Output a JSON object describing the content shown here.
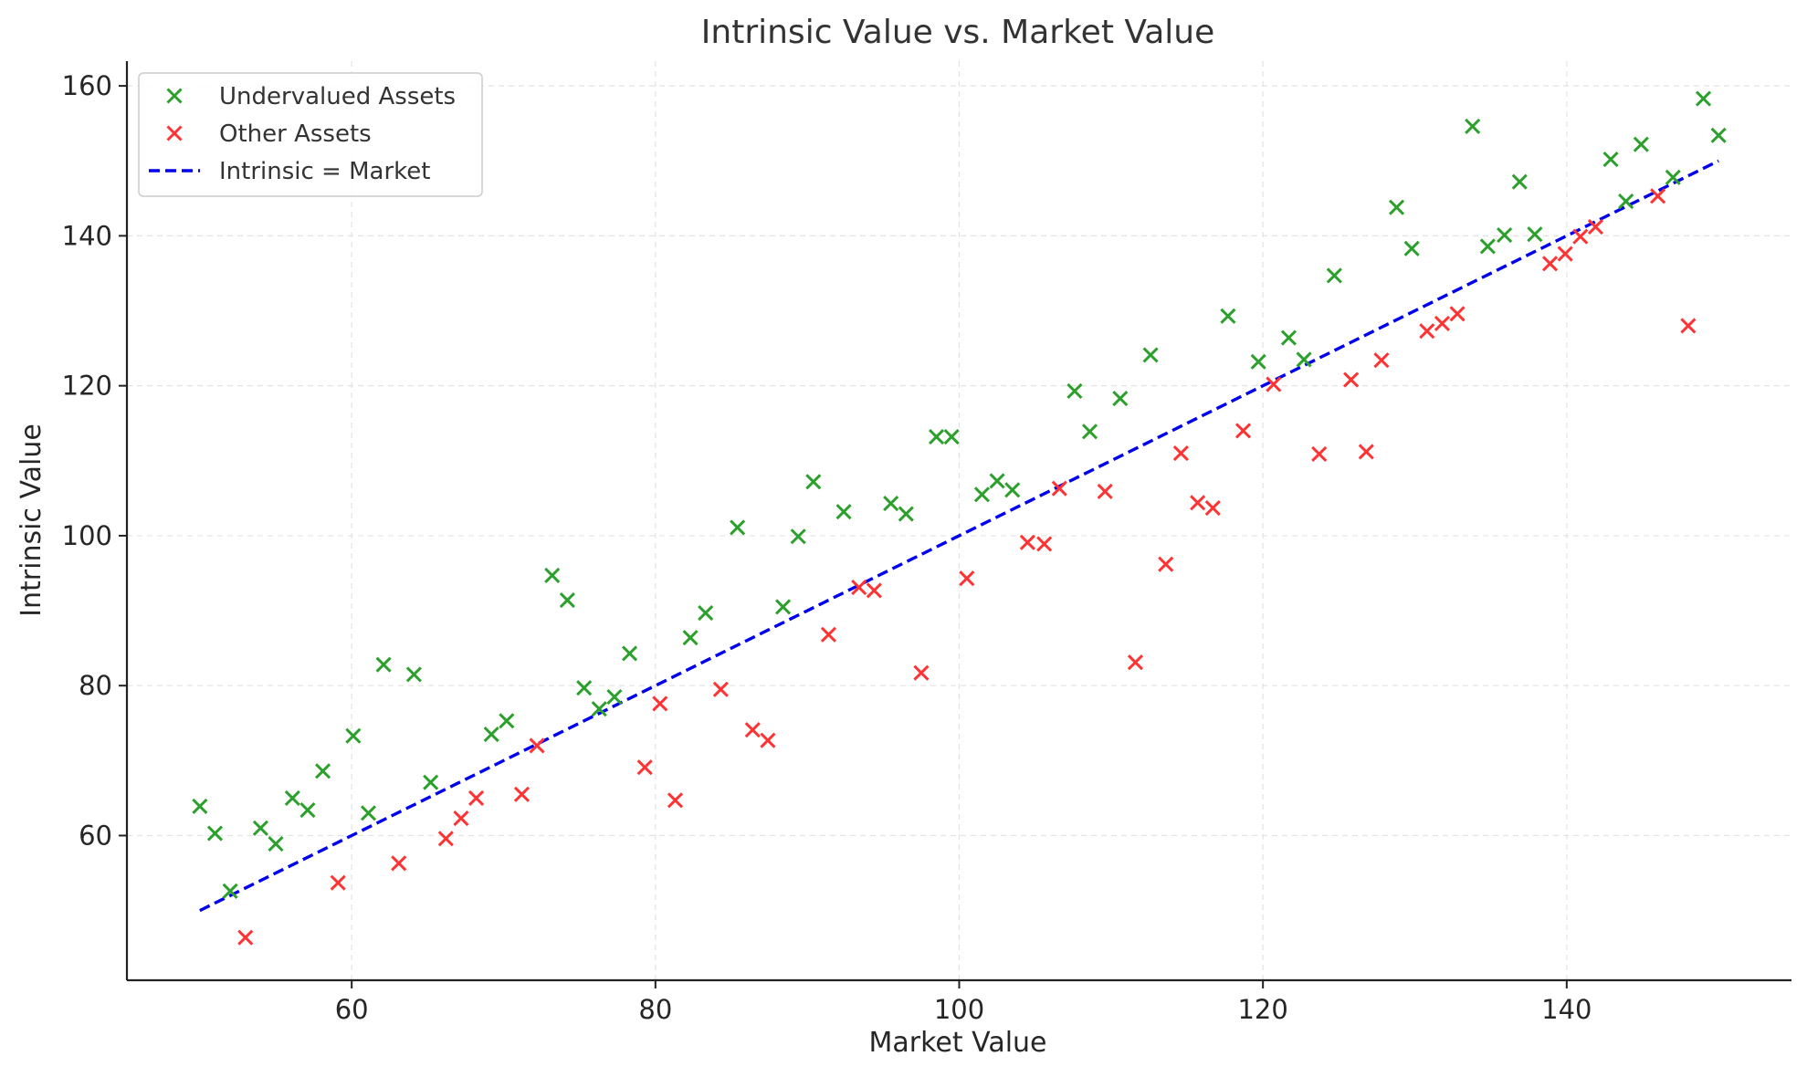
{
  "chart_data": {
    "type": "scatter",
    "title": "Intrinsic Value vs. Market Value",
    "xlabel": "Market Value",
    "ylabel": "Intrinsic Value",
    "xlim": [
      45.2,
      154.8
    ],
    "ylim": [
      40.7,
      163.3
    ],
    "x_ticks": [
      60,
      80,
      100,
      120,
      140
    ],
    "y_ticks": [
      60,
      80,
      100,
      120,
      140,
      160
    ],
    "grid": true,
    "legend_position": "top-left",
    "series": [
      {
        "name": "Undervalued Assets",
        "color": "#2ca02c",
        "marker": "x",
        "points": [
          [
            50.0,
            63.9
          ],
          [
            51.0,
            60.3
          ],
          [
            52.0,
            52.6
          ],
          [
            54.0,
            61.0
          ],
          [
            55.0,
            58.9
          ],
          [
            56.1,
            65.0
          ],
          [
            57.1,
            63.4
          ],
          [
            58.1,
            68.6
          ],
          [
            60.1,
            73.3
          ],
          [
            61.1,
            63.0
          ],
          [
            62.1,
            82.8
          ],
          [
            64.1,
            81.5
          ],
          [
            65.2,
            67.1
          ],
          [
            69.2,
            73.5
          ],
          [
            70.2,
            75.3
          ],
          [
            73.2,
            94.7
          ],
          [
            74.2,
            91.4
          ],
          [
            75.3,
            79.7
          ],
          [
            76.3,
            76.9
          ],
          [
            77.3,
            78.5
          ],
          [
            78.3,
            84.3
          ],
          [
            82.3,
            86.4
          ],
          [
            83.3,
            89.7
          ],
          [
            85.4,
            101.1
          ],
          [
            88.4,
            90.5
          ],
          [
            89.4,
            99.9
          ],
          [
            90.4,
            107.2
          ],
          [
            92.4,
            103.2
          ],
          [
            95.5,
            104.3
          ],
          [
            96.5,
            102.9
          ],
          [
            98.5,
            113.2
          ],
          [
            99.5,
            113.2
          ],
          [
            101.5,
            105.5
          ],
          [
            102.5,
            107.3
          ],
          [
            103.5,
            106.1
          ],
          [
            107.6,
            119.3
          ],
          [
            108.6,
            113.9
          ],
          [
            110.6,
            118.3
          ],
          [
            112.6,
            124.1
          ],
          [
            117.7,
            129.3
          ],
          [
            119.7,
            123.2
          ],
          [
            121.7,
            126.4
          ],
          [
            122.7,
            123.5
          ],
          [
            124.7,
            134.7
          ],
          [
            128.8,
            143.8
          ],
          [
            129.8,
            138.3
          ],
          [
            133.8,
            154.6
          ],
          [
            134.8,
            138.6
          ],
          [
            135.9,
            140.1
          ],
          [
            136.9,
            147.2
          ],
          [
            137.9,
            140.2
          ],
          [
            142.9,
            150.2
          ],
          [
            143.9,
            144.6
          ],
          [
            144.9,
            152.2
          ],
          [
            147.0,
            147.8
          ],
          [
            149.0,
            158.3
          ],
          [
            150.0,
            153.4
          ]
        ]
      },
      {
        "name": "Other Assets",
        "color": "#ff3333",
        "marker": "x",
        "points": [
          [
            53.0,
            46.4
          ],
          [
            59.1,
            53.7
          ],
          [
            63.1,
            56.3
          ],
          [
            66.2,
            59.6
          ],
          [
            67.2,
            62.3
          ],
          [
            68.2,
            65.0
          ],
          [
            71.2,
            65.5
          ],
          [
            72.2,
            72.0
          ],
          [
            79.3,
            69.1
          ],
          [
            80.3,
            77.6
          ],
          [
            81.3,
            64.7
          ],
          [
            84.3,
            79.5
          ],
          [
            86.4,
            74.1
          ],
          [
            87.4,
            72.7
          ],
          [
            91.4,
            86.8
          ],
          [
            93.4,
            93.1
          ],
          [
            94.4,
            92.7
          ],
          [
            97.5,
            81.7
          ],
          [
            100.5,
            94.3
          ],
          [
            104.5,
            99.1
          ],
          [
            105.6,
            98.9
          ],
          [
            106.6,
            106.3
          ],
          [
            109.6,
            105.9
          ],
          [
            111.6,
            83.1
          ],
          [
            113.6,
            96.2
          ],
          [
            114.6,
            111.0
          ],
          [
            115.7,
            104.4
          ],
          [
            116.7,
            103.7
          ],
          [
            118.7,
            114.0
          ],
          [
            120.7,
            120.2
          ],
          [
            123.7,
            110.9
          ],
          [
            125.8,
            120.8
          ],
          [
            126.8,
            111.2
          ],
          [
            127.8,
            123.4
          ],
          [
            130.8,
            127.3
          ],
          [
            131.8,
            128.3
          ],
          [
            132.8,
            129.6
          ],
          [
            138.9,
            136.3
          ],
          [
            139.9,
            137.6
          ],
          [
            140.9,
            139.9
          ],
          [
            141.9,
            141.2
          ],
          [
            146.0,
            145.3
          ],
          [
            148.0,
            128.0
          ]
        ]
      },
      {
        "name": "Intrinsic = Market",
        "color": "#0000ee",
        "style": "dashed-line",
        "points": [
          [
            50,
            50
          ],
          [
            150,
            150
          ]
        ]
      }
    ]
  }
}
